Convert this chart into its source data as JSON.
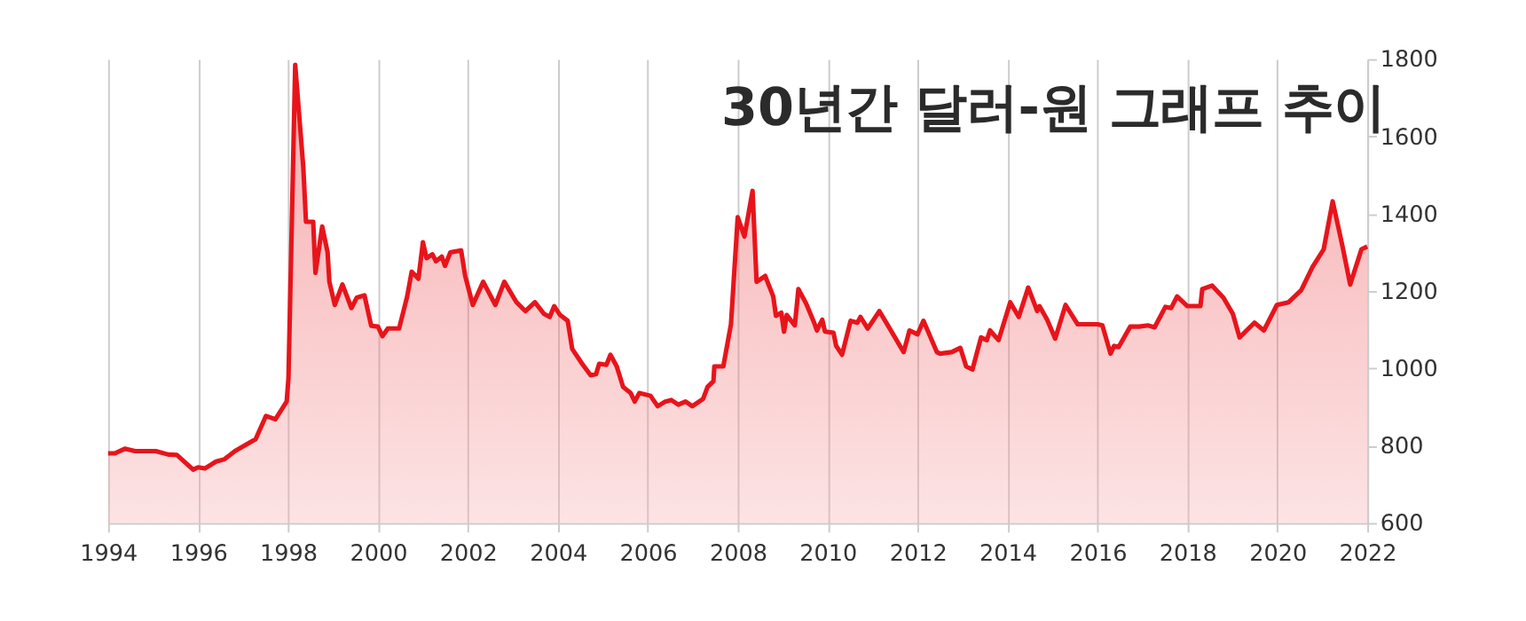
{
  "chart_data": {
    "type": "area",
    "title": "30년간 달러-원 그래프 추이",
    "xlim": [
      1994,
      2022
    ],
    "xticks": [
      1994,
      1996,
      1998,
      2000,
      2002,
      2004,
      2006,
      2008,
      2010,
      2012,
      2014,
      2016,
      2018,
      2020,
      2022
    ],
    "ylim": [
      600,
      1800
    ],
    "yticks": [
      600,
      800,
      1000,
      1200,
      1400,
      1600,
      1800
    ],
    "grid": "x",
    "legend": false,
    "line_style": "solid",
    "marker": "none",
    "series": [
      {
        "color": "#e8141b",
        "x": [
          1994.0,
          1994.15,
          1994.37,
          1994.6,
          1995.06,
          1995.34,
          1995.53,
          1995.89,
          1996.0,
          1996.15,
          1996.4,
          1996.59,
          1996.82,
          1997.28,
          1997.51,
          1997.72,
          1997.97,
          1998.01,
          1998.16,
          1998.34,
          1998.4,
          1998.56,
          1998.61,
          1998.76,
          1998.88,
          1998.92,
          1999.04,
          1999.21,
          1999.41,
          1999.53,
          1999.7,
          1999.85,
          2000.0,
          2000.1,
          2000.22,
          2000.47,
          2000.65,
          2000.75,
          2000.9,
          2001.0,
          2001.08,
          2001.21,
          2001.29,
          2001.42,
          2001.49,
          2001.61,
          2001.85,
          2001.94,
          2002.11,
          2002.34,
          2002.61,
          2002.81,
          2003.08,
          2003.28,
          2003.49,
          2003.69,
          2003.82,
          2003.92,
          2004.05,
          2004.22,
          2004.32,
          2004.54,
          2004.73,
          2004.85,
          2004.92,
          2005.08,
          2005.17,
          2005.31,
          2005.45,
          2005.62,
          2005.71,
          2005.81,
          2006.06,
          2006.22,
          2006.39,
          2006.52,
          2006.68,
          2006.84,
          2006.99,
          2007.23,
          2007.33,
          2007.46,
          2007.48,
          2007.68,
          2007.85,
          2008.0,
          2008.15,
          2008.33,
          2008.42,
          2008.61,
          2008.79,
          2008.85,
          2008.97,
          2009.03,
          2009.09,
          2009.27,
          2009.35,
          2009.52,
          2009.7,
          2009.76,
          2009.88,
          2009.94,
          2010.13,
          2010.19,
          2010.32,
          2010.51,
          2010.66,
          2010.73,
          2010.89,
          2011.15,
          2011.34,
          2011.69,
          2011.82,
          2012.0,
          2012.13,
          2012.43,
          2012.5,
          2012.76,
          2012.95,
          2013.08,
          2013.22,
          2013.41,
          2013.54,
          2013.61,
          2013.8,
          2014.06,
          2014.25,
          2014.46,
          2014.66,
          2014.71,
          2014.88,
          2015.06,
          2015.29,
          2015.56,
          2016.0,
          2016.11,
          2016.29,
          2016.37,
          2016.47,
          2016.73,
          2016.93,
          2017.13,
          2017.27,
          2017.51,
          2017.64,
          2017.77,
          2018.0,
          2018.29,
          2018.33,
          2018.55,
          2018.8,
          2019.01,
          2019.16,
          2019.49,
          2019.7,
          2019.99,
          2020.25,
          2020.53,
          2020.78,
          2021.03,
          2021.23,
          2021.45,
          2021.62,
          2021.87,
          2022.0
        ],
        "values": [
          780,
          780,
          792,
          786,
          786,
          777,
          776,
          738,
          744,
          741,
          759,
          765,
          786,
          817,
          877,
          868,
          914,
          974,
          1785,
          1520,
          1379,
          1379,
          1247,
          1367,
          1300,
          1224,
          1164,
          1217,
          1156,
          1183,
          1189,
          1110,
          1108,
          1083,
          1103,
          1103,
          1186,
          1250,
          1232,
          1326,
          1285,
          1295,
          1277,
          1289,
          1265,
          1300,
          1305,
          1239,
          1164,
          1224,
          1164,
          1224,
          1171,
          1148,
          1171,
          1141,
          1133,
          1161,
          1138,
          1123,
          1050,
          1012,
          982,
          985,
          1012,
          1009,
          1035,
          1005,
          952,
          936,
          914,
          936,
          929,
          902,
          914,
          918,
          906,
          914,
          902,
          921,
          952,
          967,
          1005,
          1005,
          1114,
          1391,
          1341,
          1459,
          1224,
          1239,
          1186,
          1136,
          1144,
          1095,
          1138,
          1111,
          1205,
          1168,
          1118,
          1098,
          1126,
          1095,
          1092,
          1058,
          1035,
          1123,
          1118,
          1133,
          1103,
          1148,
          1111,
          1042,
          1098,
          1088,
          1123,
          1042,
          1038,
          1042,
          1053,
          1005,
          997,
          1080,
          1073,
          1098,
          1073,
          1171,
          1133,
          1209,
          1148,
          1161,
          1126,
          1077,
          1164,
          1114,
          1114,
          1111,
          1038,
          1058,
          1055,
          1108,
          1108,
          1111,
          1106,
          1159,
          1156,
          1186,
          1161,
          1161,
          1205,
          1214,
          1183,
          1141,
          1080,
          1118,
          1098,
          1164,
          1171,
          1202,
          1262,
          1308,
          1432,
          1315,
          1217,
          1308,
          1315
        ]
      }
    ]
  }
}
